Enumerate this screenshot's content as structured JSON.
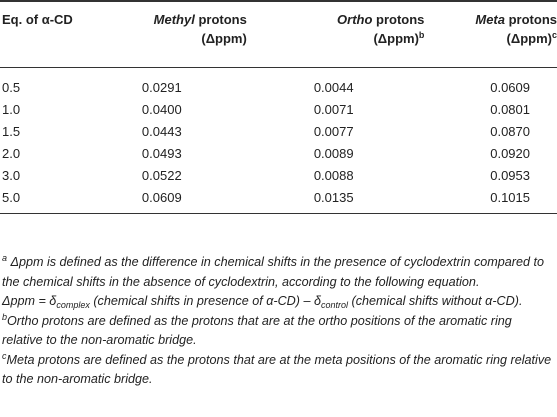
{
  "table": {
    "headers": {
      "col0": "Eq. of α-CD",
      "col1_italic": "Methyl",
      "col1_rest": " protons",
      "col1_line2": "(Δppm)",
      "col2_italic": "Ortho",
      "col2_rest": " protons",
      "col2_line2": "(Δppm)",
      "col2_sup": "b",
      "col3_italic": "Meta",
      "col3_rest": " protons",
      "col3_line2": "(Δppm)",
      "col3_sup": "c"
    },
    "rows": [
      {
        "eq": "0.5",
        "methyl": "0.0291",
        "ortho": "0.0044",
        "meta": "0.0609"
      },
      {
        "eq": "1.0",
        "methyl": "0.0400",
        "ortho": "0.0071",
        "meta": "0.0801"
      },
      {
        "eq": "1.5",
        "methyl": "0.0443",
        "ortho": "0.0077",
        "meta": "0.0870"
      },
      {
        "eq": "2.0",
        "methyl": "0.0493",
        "ortho": "0.0089",
        "meta": "0.0920"
      },
      {
        "eq": "3.0",
        "methyl": "0.0522",
        "ortho": "0.0088",
        "meta": "0.0953"
      },
      {
        "eq": "5.0",
        "methyl": "0.0609",
        "ortho": "0.0135",
        "meta": "0.1015"
      }
    ]
  },
  "footnotes": {
    "a": {
      "marker": "a",
      "text": " Δppm is defined as the difference in chemical shifts in the presence of cyclodextrin compared to the chemical shifts in the absence of cyclodextrin, according to the following equation."
    },
    "eq": {
      "lhs": "Δppm = δ",
      "sub1": "complex",
      "mid": " (chemical shifts in presence of α-CD) – δ",
      "sub2": "control",
      "rhs": " (chemical shifts without α-CD)."
    },
    "b": {
      "marker": "b",
      "text": "Ortho protons are defined as the protons that are at the ortho positions of the aromatic ring relative to the non-aromatic bridge."
    },
    "c": {
      "marker": "c",
      "text": "Meta protons are defined as the protons that are at the meta positions of the aromatic ring relative to the non-aromatic bridge."
    }
  }
}
